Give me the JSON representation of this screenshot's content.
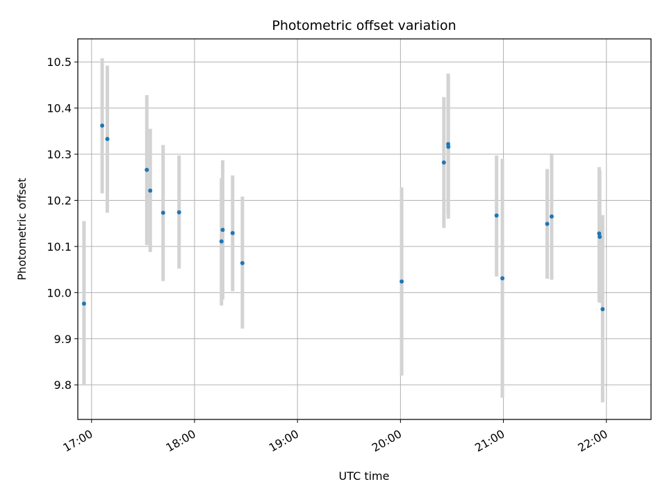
{
  "chart_data": {
    "type": "scatter",
    "title": "Photometric offset variation",
    "xlabel": "UTC time",
    "ylabel": "Photometric offset",
    "x_ticks": [
      "17:00",
      "18:00",
      "19:00",
      "20:00",
      "21:00",
      "22:00"
    ],
    "x_tick_values": [
      1020,
      1080,
      1140,
      1200,
      1260,
      1320
    ],
    "y_ticks": [
      "9.8",
      "9.9",
      "10.0",
      "10.1",
      "10.2",
      "10.3",
      "10.4",
      "10.5"
    ],
    "y_tick_values": [
      9.8,
      9.9,
      10.0,
      10.1,
      10.2,
      10.3,
      10.4,
      10.5
    ],
    "xlim": [
      1012,
      1346
    ],
    "ylim": [
      9.725,
      10.55
    ],
    "grid": true,
    "error_bar_color": "#d3d3d3",
    "marker_color": "#1f77b4",
    "points": [
      {
        "time": "16:55",
        "t": 1015.6,
        "y": 9.976,
        "ylow": 9.8,
        "yhigh": 10.155
      },
      {
        "time": "17:06",
        "t": 1026.2,
        "y": 10.362,
        "ylow": 10.215,
        "yhigh": 10.508
      },
      {
        "time": "17:09",
        "t": 1029.2,
        "y": 10.333,
        "ylow": 10.173,
        "yhigh": 10.492
      },
      {
        "time": "17:32",
        "t": 1052.2,
        "y": 10.266,
        "ylow": 10.103,
        "yhigh": 10.428
      },
      {
        "time": "17:34",
        "t": 1054.2,
        "y": 10.221,
        "ylow": 10.088,
        "yhigh": 10.355
      },
      {
        "time": "17:41",
        "t": 1061.7,
        "y": 10.173,
        "ylow": 10.025,
        "yhigh": 10.32
      },
      {
        "time": "17:51",
        "t": 1071.0,
        "y": 10.174,
        "ylow": 10.052,
        "yhigh": 10.297
      },
      {
        "time": "18:15",
        "t": 1095.7,
        "y": 10.111,
        "ylow": 9.972,
        "yhigh": 10.248
      },
      {
        "time": "18:16",
        "t": 1096.4,
        "y": 10.136,
        "ylow": 9.985,
        "yhigh": 10.287
      },
      {
        "time": "18:22",
        "t": 1102.2,
        "y": 10.129,
        "ylow": 10.003,
        "yhigh": 10.254
      },
      {
        "time": "18:27",
        "t": 1107.9,
        "y": 10.064,
        "ylow": 9.922,
        "yhigh": 10.208
      },
      {
        "time": "20:00",
        "t": 1200.7,
        "y": 10.024,
        "ylow": 9.82,
        "yhigh": 10.228
      },
      {
        "time": "20:25",
        "t": 1225.3,
        "y": 10.282,
        "ylow": 10.14,
        "yhigh": 10.424
      },
      {
        "time": "20:27",
        "t": 1227.8,
        "y": 10.322,
        "ylow": 10.17,
        "yhigh": 10.475
      },
      {
        "time": "20:28",
        "t": 1227.9,
        "y": 10.316,
        "ylow": 10.16,
        "yhigh": 10.47
      },
      {
        "time": "20:56",
        "t": 1256.0,
        "y": 10.167,
        "ylow": 10.035,
        "yhigh": 10.297
      },
      {
        "time": "20:59",
        "t": 1259.4,
        "y": 10.031,
        "ylow": 9.772,
        "yhigh": 10.29
      },
      {
        "time": "21:25",
        "t": 1285.5,
        "y": 10.149,
        "ylow": 10.03,
        "yhigh": 10.268
      },
      {
        "time": "21:28",
        "t": 1288.1,
        "y": 10.165,
        "ylow": 10.028,
        "yhigh": 10.302
      },
      {
        "time": "21:55",
        "t": 1315.8,
        "y": 10.128,
        "ylow": 9.98,
        "yhigh": 10.272
      },
      {
        "time": "21:56",
        "t": 1316.1,
        "y": 10.121,
        "ylow": 9.978,
        "yhigh": 10.265
      },
      {
        "time": "21:58",
        "t": 1317.8,
        "y": 9.964,
        "ylow": 9.762,
        "yhigh": 10.168
      }
    ]
  }
}
